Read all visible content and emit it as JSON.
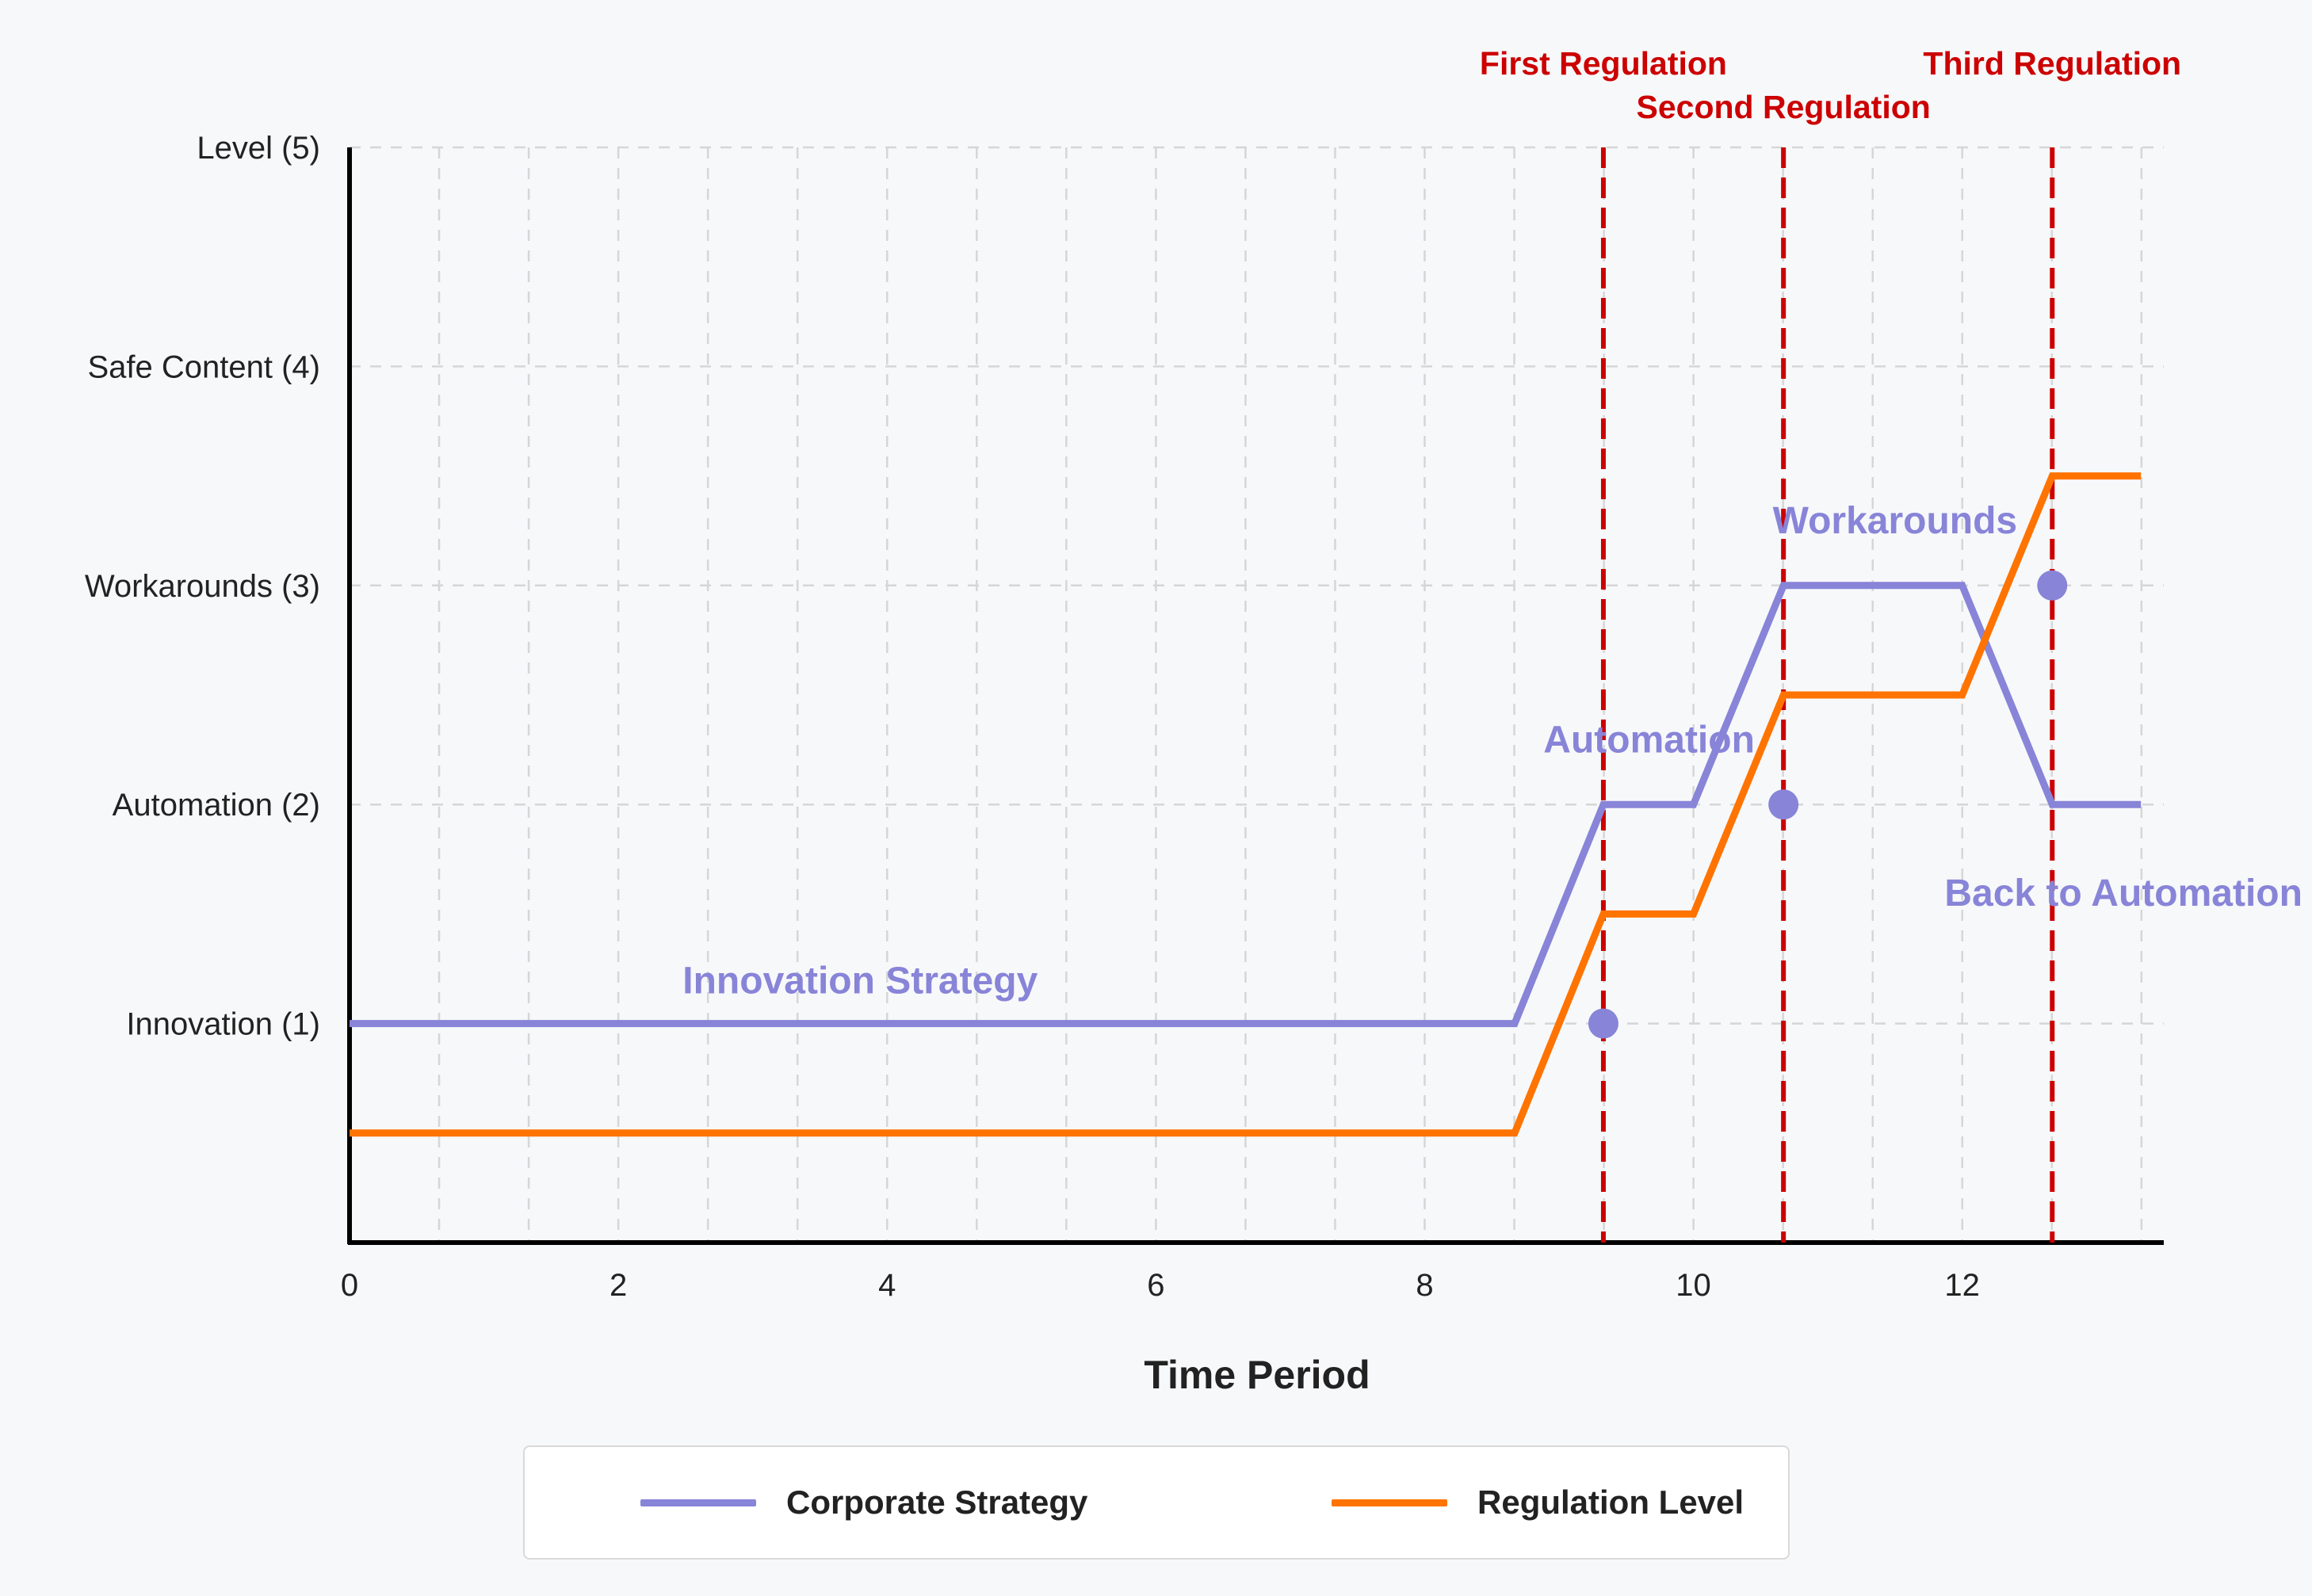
{
  "chart_data": {
    "type": "line",
    "title": "",
    "xlabel": "Time Period",
    "ylabel": "",
    "xlim": [
      0,
      13.5
    ],
    "ylim": [
      0,
      5
    ],
    "x_ticks": [
      0,
      2,
      4,
      6,
      8,
      10,
      12
    ],
    "y_ticks": [
      {
        "value": 1,
        "label": "Innovation (1)"
      },
      {
        "value": 2,
        "label": "Automation (2)"
      },
      {
        "value": 3,
        "label": "Workarounds (3)"
      },
      {
        "value": 4,
        "label": "Safe Content (4)"
      },
      {
        "value": 5,
        "label": "Level (5)"
      }
    ],
    "grid": true,
    "legend_placement": "bottom",
    "series": [
      {
        "name": "Corporate Strategy",
        "color": "#8884d8",
        "points": [
          [
            0,
            1
          ],
          [
            8.67,
            1
          ],
          [
            9.33,
            2
          ],
          [
            10,
            2
          ],
          [
            10.67,
            3
          ],
          [
            12,
            3
          ],
          [
            12.67,
            2
          ],
          [
            13.33,
            2
          ]
        ]
      },
      {
        "name": "Regulation Level",
        "color": "#ff7300",
        "points": [
          [
            0,
            0.5
          ],
          [
            8.67,
            0.5
          ],
          [
            9.33,
            1.5
          ],
          [
            10,
            1.5
          ],
          [
            10.67,
            2.5
          ],
          [
            12,
            2.5
          ],
          [
            12.67,
            3.5
          ],
          [
            13.33,
            3.5
          ]
        ]
      }
    ],
    "markers": [
      {
        "x": 9.33,
        "y": 1,
        "color": "#8884d8"
      },
      {
        "x": 10.67,
        "y": 2,
        "color": "#8884d8"
      },
      {
        "x": 12.67,
        "y": 3,
        "color": "#8884d8"
      }
    ],
    "regulations": [
      {
        "x": 9.33,
        "label": "First Regulation",
        "row": 1
      },
      {
        "x": 10.67,
        "label": "Second Regulation",
        "row": 2
      },
      {
        "x": 12.67,
        "label": "Third Regulation",
        "row": 1
      }
    ],
    "regulation_color": "#cc0000",
    "annotations": [
      {
        "text": "Innovation Strategy",
        "x": 3.8,
        "y": 1.2,
        "anchor": "middle"
      },
      {
        "text": "Automation",
        "x": 9.67,
        "y": 2.3,
        "anchor": "middle"
      },
      {
        "text": "Workarounds",
        "x": 11.5,
        "y": 3.3,
        "anchor": "middle"
      },
      {
        "text": "Back to Automation",
        "x": 13.2,
        "y": 1.6,
        "anchor": "middle"
      }
    ]
  },
  "legend": {
    "corporate_label": "Corporate Strategy",
    "regulation_label": "Regulation Level"
  }
}
